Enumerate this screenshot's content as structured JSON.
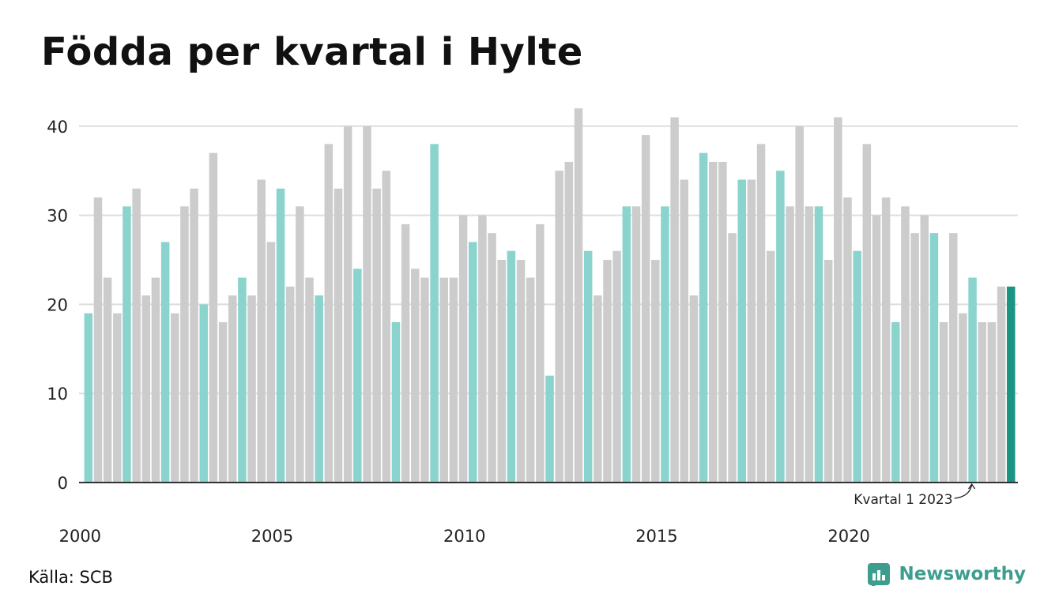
{
  "title": "Födda per kvartal i Hylte",
  "source": "Källa: SCB",
  "brand": {
    "name": "Newsworthy",
    "icon": "newsworthy-logo-icon"
  },
  "colors": {
    "bar_default": "#cccccc",
    "bar_q1": "#8ad4cd",
    "bar_latest": "#1a9484",
    "grid": "#dddddd",
    "axis": "#333333",
    "brand": "#3e9e8e"
  },
  "chart_data": {
    "type": "bar",
    "title": "Födda per kvartal i Hylte",
    "xlabel": "",
    "ylabel": "",
    "ylim": [
      0,
      42
    ],
    "yticks": [
      0,
      10,
      20,
      30,
      40
    ],
    "xtick_labels": [
      "2000",
      "2005",
      "2010",
      "2015",
      "2020"
    ],
    "grid": true,
    "highlight": "Kvartal 1 of each year is drawn in light teal; the latest quarter in dark teal",
    "annotation": "Kvartal 1 2023",
    "series": [
      {
        "year": 2000,
        "values": [
          19,
          32,
          23,
          19
        ]
      },
      {
        "year": 2001,
        "values": [
          31,
          33,
          21,
          23
        ]
      },
      {
        "year": 2002,
        "values": [
          27,
          19,
          31,
          33
        ]
      },
      {
        "year": 2003,
        "values": [
          20,
          37,
          18,
          21
        ]
      },
      {
        "year": 2004,
        "values": [
          23,
          21,
          34,
          27
        ]
      },
      {
        "year": 2005,
        "values": [
          33,
          22,
          31,
          23
        ]
      },
      {
        "year": 2006,
        "values": [
          21,
          38,
          33,
          40
        ]
      },
      {
        "year": 2007,
        "values": [
          24,
          40,
          33,
          35
        ]
      },
      {
        "year": 2008,
        "values": [
          18,
          29,
          24,
          23
        ]
      },
      {
        "year": 2009,
        "values": [
          38,
          23,
          23,
          30
        ]
      },
      {
        "year": 2010,
        "values": [
          27,
          30,
          28,
          25
        ]
      },
      {
        "year": 2011,
        "values": [
          26,
          25,
          23,
          29
        ]
      },
      {
        "year": 2012,
        "values": [
          12,
          35,
          36,
          42
        ]
      },
      {
        "year": 2013,
        "values": [
          26,
          21,
          25,
          26
        ]
      },
      {
        "year": 2014,
        "values": [
          31,
          31,
          39,
          25
        ]
      },
      {
        "year": 2015,
        "values": [
          31,
          41,
          34,
          21
        ]
      },
      {
        "year": 2016,
        "values": [
          37,
          36,
          36,
          28
        ]
      },
      {
        "year": 2017,
        "values": [
          34,
          34,
          38,
          26
        ]
      },
      {
        "year": 2018,
        "values": [
          35,
          31,
          40,
          31
        ]
      },
      {
        "year": 2019,
        "values": [
          31,
          25,
          41,
          32
        ]
      },
      {
        "year": 2020,
        "values": [
          26,
          38,
          30,
          32
        ]
      },
      {
        "year": 2021,
        "values": [
          18,
          31,
          28,
          30
        ]
      },
      {
        "year": 2022,
        "values": [
          28,
          18,
          28,
          19
        ]
      },
      {
        "year": 2023,
        "values": [
          23,
          18,
          18,
          22
        ]
      },
      {
        "year": 2024,
        "values": [
          22
        ]
      }
    ]
  }
}
